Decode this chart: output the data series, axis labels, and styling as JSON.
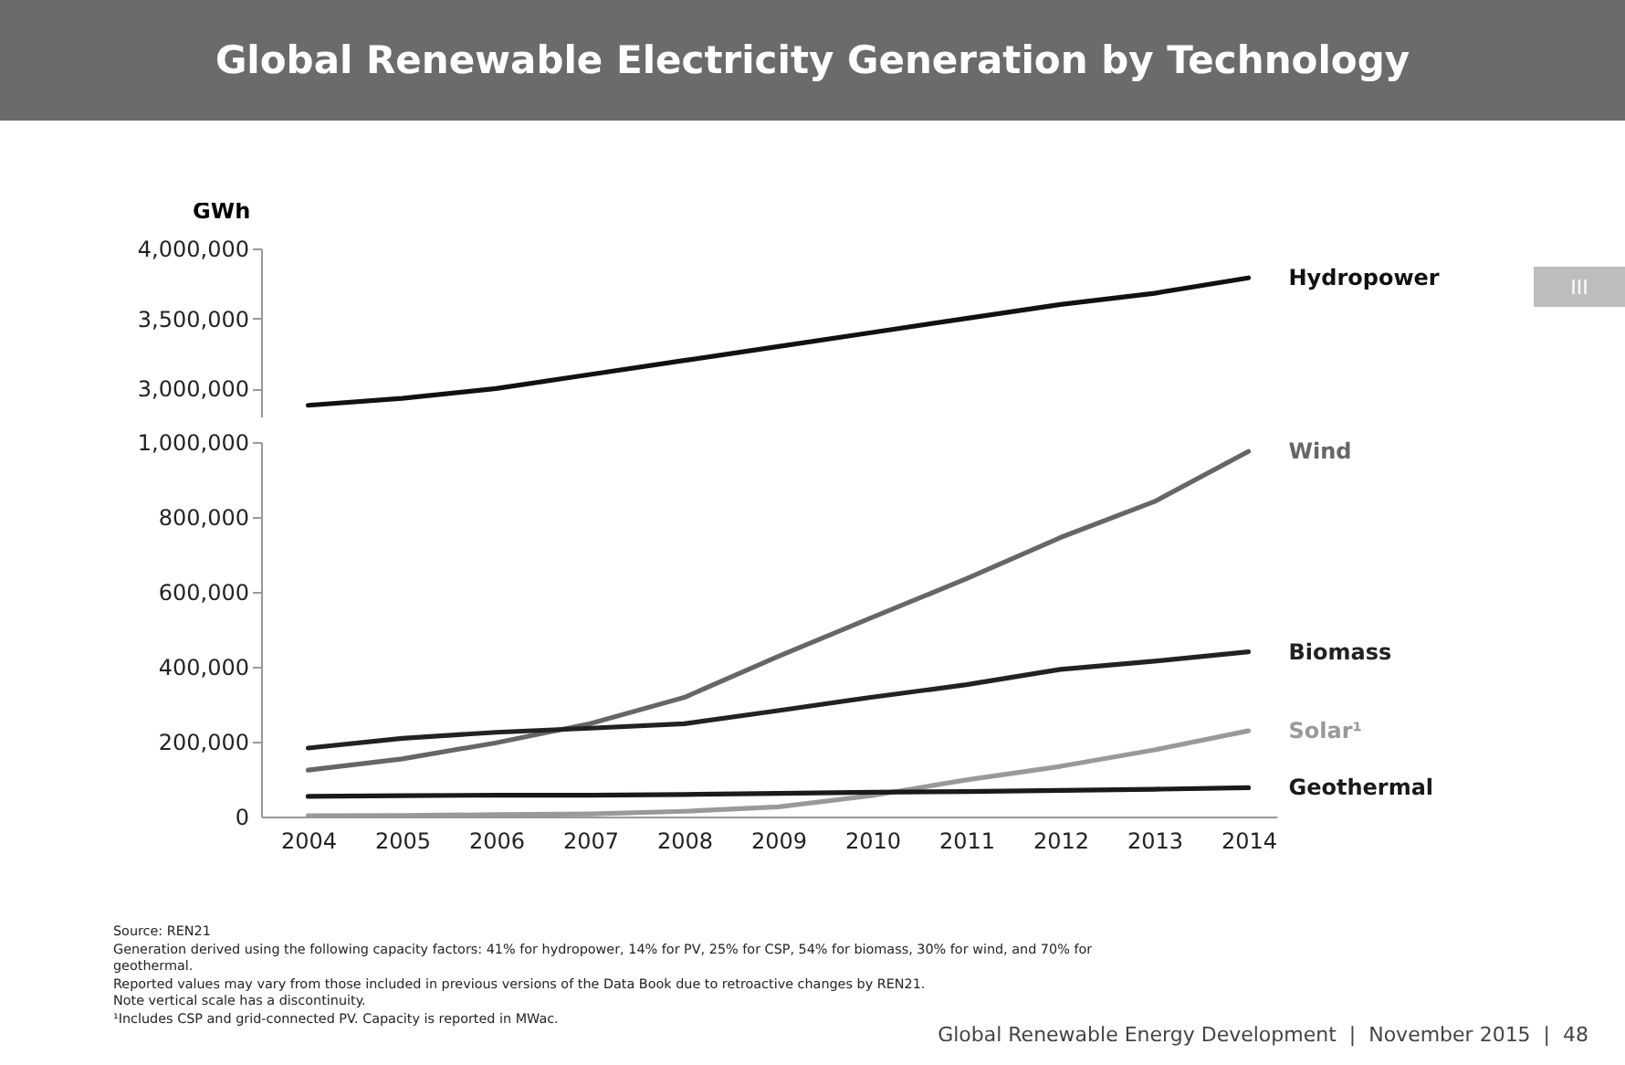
{
  "chart_data": [
    {
      "type": "line",
      "title": "Global Renewable Electricity Generation by Technology",
      "ylabel": "GWh",
      "categories": [
        null,
        null,
        null,
        null,
        null,
        null,
        null,
        null,
        null,
        null,
        null
      ],
      "series": [
        {
          "name": "Hydropower",
          "color": "#111111",
          "values": [
            2880000,
            2930000,
            3000000,
            3100000,
            3200000,
            3300000,
            3400000,
            3500000,
            3600000,
            3680000,
            3790000
          ]
        }
      ],
      "ylim": [
        2800000,
        4000000
      ],
      "yticks": [
        {
          "value": 3000000,
          "label": "3,000,000"
        },
        {
          "value": 3500000,
          "label": "3,500,000"
        },
        {
          "value": 4000000,
          "label": "4,000,000"
        }
      ],
      "tick_labels": "y",
      "annotations": [
        "III"
      ]
    },
    {
      "type": "line",
      "x": [
        2004,
        2005,
        2006,
        2007,
        2008,
        2009,
        2010,
        2011,
        2012,
        2013,
        2014
      ],
      "series": [
        {
          "name": "Wind",
          "color": "#666666",
          "values": [
            124000,
            154000,
            197000,
            248000,
            318000,
            428000,
            532000,
            635000,
            745000,
            841000,
            975000
          ]
        },
        {
          "name": "Biomass",
          "color": "#222222",
          "values": [
            183000,
            209000,
            225000,
            236000,
            248000,
            283000,
            319000,
            352000,
            393000,
            415000,
            440000
          ]
        },
        {
          "name": "Solar¹",
          "color": "#999999",
          "values": [
            2000,
            3000,
            5000,
            7000,
            14000,
            26000,
            56000,
            98000,
            134000,
            178000,
            229000
          ]
        },
        {
          "name": "Geothermal",
          "color": "#1a1a1a",
          "values": [
            54000,
            56000,
            57000,
            57000,
            59000,
            62000,
            65000,
            67000,
            70000,
            73000,
            77000
          ]
        }
      ],
      "xlim": [
        2003.5,
        2014.3
      ],
      "xticks": [
        2004,
        2005,
        2006,
        2007,
        2008,
        2009,
        2010,
        2011,
        2012,
        2013,
        2014
      ],
      "ylim": [
        0,
        1000000
      ],
      "yticks": [
        0,
        {
          "value": 200000,
          "label": "200,000"
        },
        {
          "value": 400000,
          "label": "400,000"
        },
        {
          "value": 600000,
          "label": "600,000"
        },
        {
          "value": 800000,
          "label": "800,000"
        },
        {
          "value": 1000000,
          "label": "1,000,000"
        }
      ],
      "annotations": [
        "Source: REN21",
        "Generation derived using the following capacity factors: 41% for hydropower, 14% for PV, 25% for CSP, 54% for biomass, 30% for wind, and 70% for geothermal.",
        "Reported values may vary from those included in previous versions of the Data Book due to retroactive changes by REN21.",
        "Note vertical scale has a discontinuity.",
        "¹Includes CSP and grid-connected PV. Capacity is reported in MWac.",
        "Global Renewable Energy Development  |  November 2015  |  48"
      ]
    }
  ]
}
